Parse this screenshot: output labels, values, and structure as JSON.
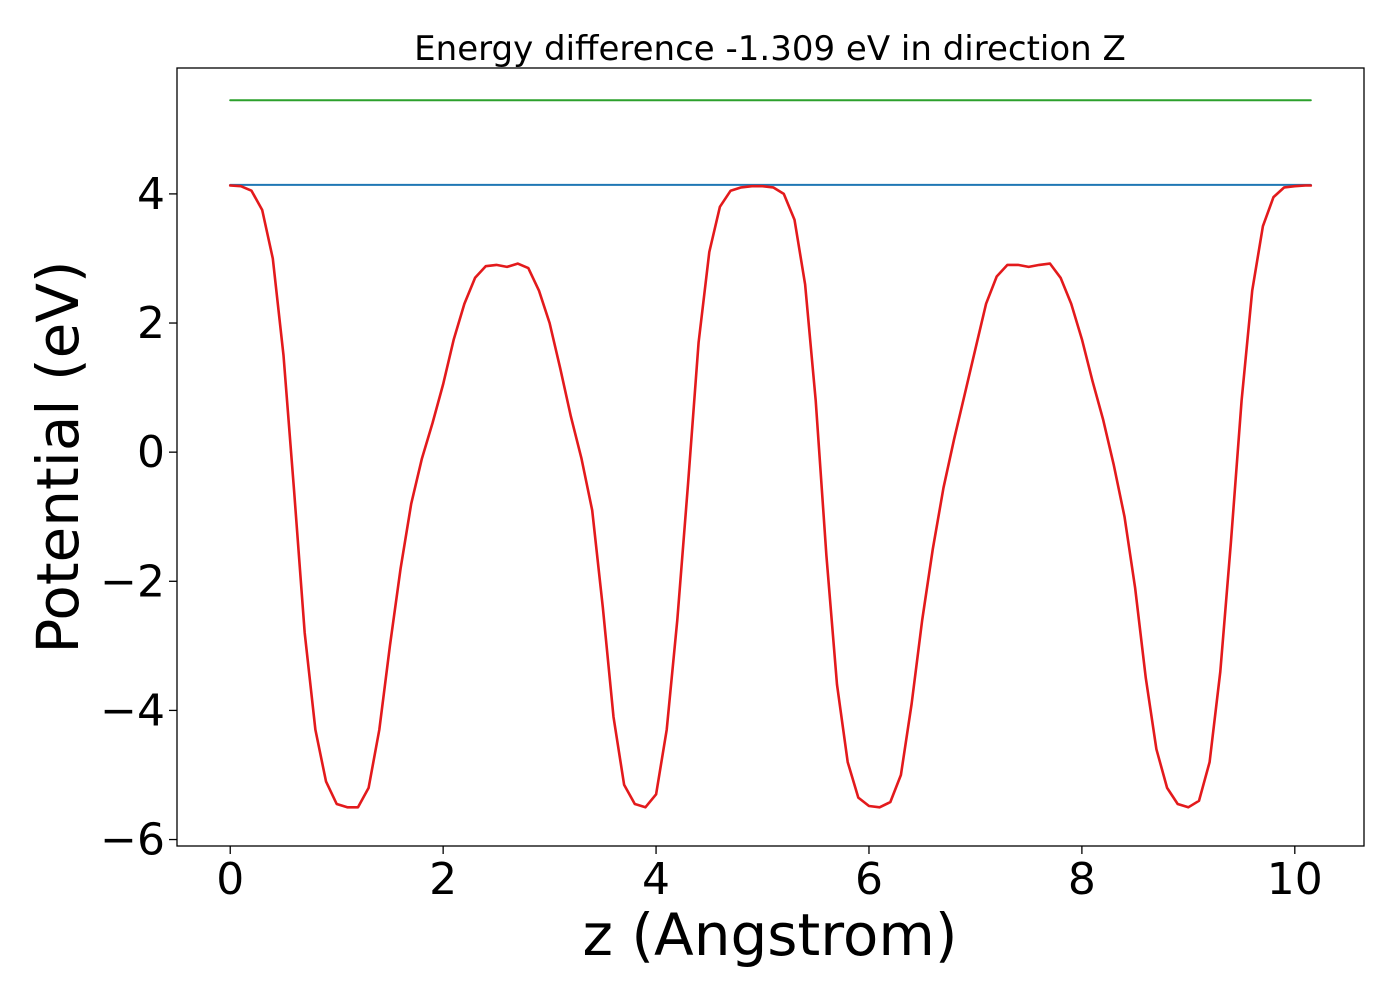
{
  "chart_data": {
    "type": "line",
    "title": "Energy difference -1.309 eV in direction Z",
    "xlabel": "z (Angstrom)",
    "ylabel": "Potential (eV)",
    "xlim": [
      -0.5,
      10.65
    ],
    "ylim": [
      -6.1,
      5.95
    ],
    "xticks": [
      0,
      2,
      4,
      6,
      8,
      10
    ],
    "xtick_labels": [
      "0",
      "2",
      "4",
      "6",
      "8",
      "10"
    ],
    "yticks": [
      4,
      2,
      0,
      -2,
      -4,
      -6
    ],
    "ytick_labels": [
      "4",
      "2",
      "0",
      "−2",
      "−4",
      "−6"
    ],
    "grid": false,
    "legend": "none",
    "series": [
      {
        "color": "#2ca02c",
        "x": [
          0,
          10.15
        ],
        "y": [
          5.45,
          5.45
        ]
      },
      {
        "color": "#1f77b4",
        "x": [
          0,
          10.15
        ],
        "y": [
          4.14,
          4.14
        ]
      },
      {
        "color": "#e31a1c",
        "x": [
          0,
          0.1,
          0.2,
          0.3,
          0.4,
          0.5,
          0.6,
          0.7,
          0.8,
          0.9,
          1.0,
          1.1,
          1.2,
          1.3,
          1.4,
          1.5,
          1.6,
          1.7,
          1.8,
          1.9,
          2.0,
          2.1,
          2.2,
          2.3,
          2.4,
          2.5,
          2.6,
          2.7,
          2.8,
          2.9,
          3.0,
          3.1,
          3.2,
          3.3,
          3.4,
          3.5,
          3.6,
          3.7,
          3.8,
          3.9,
          4.0,
          4.1,
          4.2,
          4.3,
          4.4,
          4.5,
          4.6,
          4.7,
          4.8,
          4.9,
          5.0,
          5.1,
          5.2,
          5.3,
          5.4,
          5.5,
          5.6,
          5.7,
          5.8,
          5.9,
          6.0,
          6.1,
          6.2,
          6.3,
          6.4,
          6.5,
          6.6,
          6.7,
          6.8,
          6.9,
          7.0,
          7.1,
          7.2,
          7.3,
          7.4,
          7.5,
          7.6,
          7.7,
          7.8,
          7.9,
          8.0,
          8.1,
          8.2,
          8.3,
          8.4,
          8.5,
          8.6,
          8.7,
          8.8,
          8.9,
          9.0,
          9.1,
          9.2,
          9.3,
          9.4,
          9.5,
          9.6,
          9.7,
          9.8,
          9.9,
          10.0,
          10.1,
          10.15
        ],
        "y": [
          4.13,
          4.12,
          4.05,
          3.75,
          3.0,
          1.5,
          -0.6,
          -2.8,
          -4.3,
          -5.1,
          -5.45,
          -5.5,
          -5.5,
          -5.2,
          -4.3,
          -3.0,
          -1.8,
          -0.8,
          -0.1,
          0.45,
          1.05,
          1.75,
          2.3,
          2.7,
          2.88,
          2.9,
          2.87,
          2.92,
          2.85,
          2.5,
          2.0,
          1.3,
          0.55,
          -0.1,
          -0.9,
          -2.4,
          -4.1,
          -5.15,
          -5.45,
          -5.5,
          -5.3,
          -4.3,
          -2.6,
          -0.5,
          1.7,
          3.1,
          3.8,
          4.05,
          4.1,
          4.12,
          4.12,
          4.1,
          4.0,
          3.6,
          2.6,
          0.8,
          -1.6,
          -3.6,
          -4.8,
          -5.35,
          -5.48,
          -5.5,
          -5.42,
          -5.0,
          -3.9,
          -2.6,
          -1.5,
          -0.55,
          0.2,
          0.9,
          1.6,
          2.3,
          2.72,
          2.9,
          2.9,
          2.87,
          2.9,
          2.92,
          2.7,
          2.3,
          1.75,
          1.1,
          0.5,
          -0.2,
          -1.0,
          -2.1,
          -3.5,
          -4.6,
          -5.2,
          -5.45,
          -5.5,
          -5.4,
          -4.8,
          -3.4,
          -1.4,
          0.8,
          2.5,
          3.5,
          3.95,
          4.1,
          4.12,
          4.13,
          4.13
        ]
      }
    ]
  }
}
